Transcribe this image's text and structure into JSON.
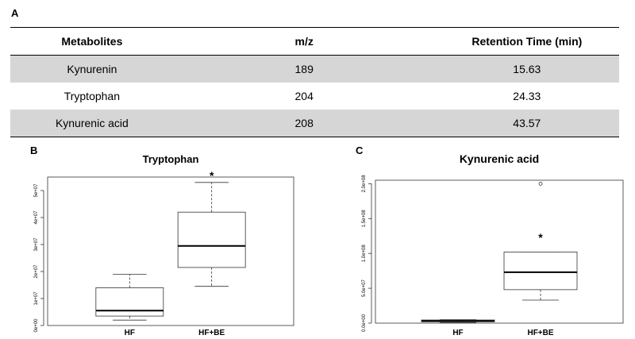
{
  "panels": {
    "a": "A",
    "b": "B",
    "c": "C"
  },
  "table": {
    "headers": [
      "Metabolites",
      "m/z",
      "Retention Time (min)"
    ],
    "rows": [
      [
        "Kynurenin",
        "189",
        "15.63"
      ],
      [
        "Tryptophan",
        "204",
        "24.33"
      ],
      [
        "Kynurenic acid",
        "208",
        "43.57"
      ]
    ]
  },
  "chart_data": [
    {
      "type": "boxplot",
      "title": "Tryptophan",
      "categories": [
        "HF",
        "HF+BE"
      ],
      "ylim": [
        0,
        55000000
      ],
      "yticks": [
        0,
        10000000,
        20000000,
        30000000,
        40000000,
        50000000
      ],
      "ytick_labels": [
        "0e+00",
        "1e+07",
        "2e+07",
        "3e+07",
        "4e+07",
        "5e+07"
      ],
      "boxes": [
        {
          "min": 2000000,
          "q1": 3500000,
          "median": 5500000,
          "q3": 14000000,
          "max": 19000000,
          "outliers": []
        },
        {
          "min": 14500000,
          "q1": 21500000,
          "median": 29500000,
          "q3": 42000000,
          "max": 53000000,
          "outliers": []
        }
      ],
      "annotations": [
        {
          "category": "HF+BE",
          "text": "*"
        }
      ]
    },
    {
      "type": "boxplot",
      "title": "Kynurenic acid",
      "categories": [
        "HF",
        "HF+BE"
      ],
      "ylim": [
        0,
        205000000
      ],
      "yticks": [
        0,
        50000000,
        100000000,
        150000000,
        200000000
      ],
      "ytick_labels": [
        "0.0e+00",
        "5.0e+07",
        "1.0e+08",
        "1.5e+08",
        "2.0e+08"
      ],
      "boxes": [
        {
          "min": 1000000,
          "q1": 2000000,
          "median": 3000000,
          "q3": 4500000,
          "max": 5000000,
          "outliers": []
        },
        {
          "min": 33000000,
          "q1": 48000000,
          "median": 73000000,
          "q3": 102000000,
          "max": 102000000,
          "outliers": [
            200000000
          ]
        }
      ],
      "annotations": [
        {
          "category": "HF+BE",
          "text": "*"
        }
      ]
    }
  ]
}
